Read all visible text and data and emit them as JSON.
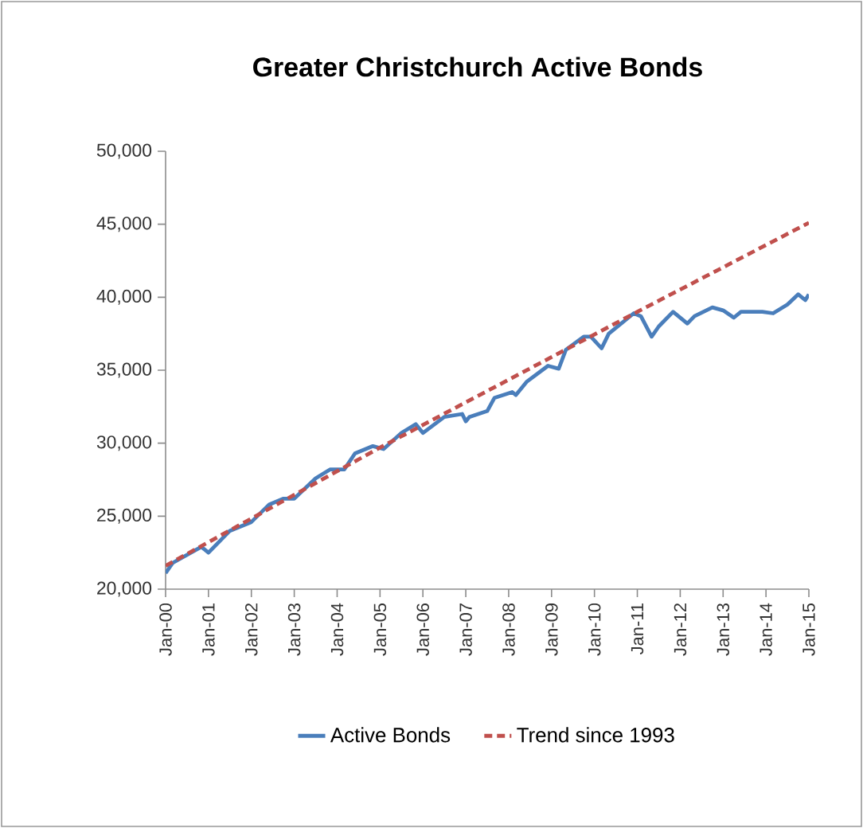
{
  "chart_data": {
    "type": "line",
    "title": "Greater Christchurch Active Bonds",
    "ylim": [
      20000,
      50000
    ],
    "yticks": [
      {
        "value": 20000,
        "label": "20,000"
      },
      {
        "value": 25000,
        "label": "25,000"
      },
      {
        "value": 30000,
        "label": "30,000"
      },
      {
        "value": 35000,
        "label": "35,000"
      },
      {
        "value": 40000,
        "label": "40,000"
      },
      {
        "value": 45000,
        "label": "45,000"
      },
      {
        "value": 50000,
        "label": "50,000"
      }
    ],
    "xlim": [
      "2000-01",
      "2015-01"
    ],
    "xticks": [
      {
        "value": "2000-01",
        "label": "Jan-00"
      },
      {
        "value": "2001-01",
        "label": "Jan-01"
      },
      {
        "value": "2002-01",
        "label": "Jan-02"
      },
      {
        "value": "2003-01",
        "label": "Jan-03"
      },
      {
        "value": "2004-01",
        "label": "Jan-04"
      },
      {
        "value": "2005-01",
        "label": "Jan-05"
      },
      {
        "value": "2006-01",
        "label": "Jan-06"
      },
      {
        "value": "2007-01",
        "label": "Jan-07"
      },
      {
        "value": "2008-01",
        "label": "Jan-08"
      },
      {
        "value": "2009-01",
        "label": "Jan-09"
      },
      {
        "value": "2010-01",
        "label": "Jan-10"
      },
      {
        "value": "2011-01",
        "label": "Jan-11"
      },
      {
        "value": "2012-01",
        "label": "Jan-12"
      },
      {
        "value": "2013-01",
        "label": "Jan-13"
      },
      {
        "value": "2014-01",
        "label": "Jan-14"
      },
      {
        "value": "2015-01",
        "label": "Jan-15"
      }
    ],
    "legend": "bottom",
    "grid": false,
    "series": [
      {
        "name": "Active Bonds",
        "color": "#4a7ebb",
        "line_style": "solid",
        "x": [
          "2000-01",
          "2000-03",
          "2000-11",
          "2001-01",
          "2001-07",
          "2002-01",
          "2002-06",
          "2002-10",
          "2003-01",
          "2003-07",
          "2003-11",
          "2004-03",
          "2004-06",
          "2004-11",
          "2005-02",
          "2005-07",
          "2005-11",
          "2006-01",
          "2006-07",
          "2006-12",
          "2007-01",
          "2007-02",
          "2007-07",
          "2007-09",
          "2008-02",
          "2008-03",
          "2008-06",
          "2008-12",
          "2009-03",
          "2009-05",
          "2009-10",
          "2009-12",
          "2010-03",
          "2010-05",
          "2010-12",
          "2011-02",
          "2011-05",
          "2011-07",
          "2011-11",
          "2012-03",
          "2012-05",
          "2012-10",
          "2013-01",
          "2013-04",
          "2013-06",
          "2013-12",
          "2014-03",
          "2014-07",
          "2014-10",
          "2014-12",
          "2015-01"
        ],
        "values": [
          21100,
          21800,
          22900,
          22500,
          24000,
          24600,
          25800,
          26200,
          26200,
          27600,
          28200,
          28200,
          29300,
          29800,
          29600,
          30700,
          31300,
          30700,
          31800,
          32000,
          31500,
          31800,
          32200,
          33100,
          33500,
          33300,
          34200,
          35300,
          35100,
          36400,
          37300,
          37300,
          36500,
          37500,
          38900,
          38700,
          37300,
          38000,
          39000,
          38200,
          38700,
          39300,
          39100,
          38600,
          39000,
          39000,
          38900,
          39500,
          40200,
          39800,
          40200
        ]
      },
      {
        "name": "Trend since 1993",
        "color": "#c0504d",
        "line_style": "dashed",
        "x": [
          "2000-01",
          "2005-01",
          "2011-01",
          "2015-01"
        ],
        "values": [
          21600,
          29700,
          39000,
          45100
        ]
      }
    ]
  }
}
